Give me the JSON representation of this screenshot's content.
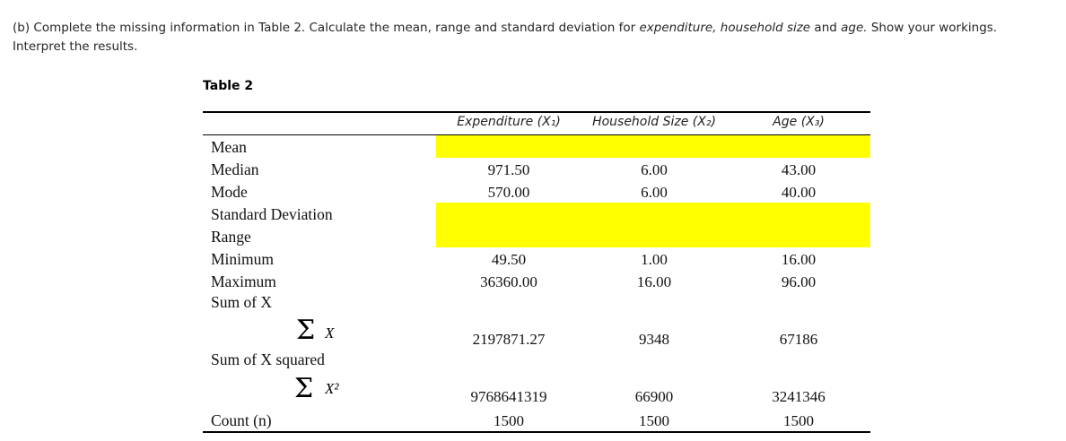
{
  "question": {
    "part1": "(b)  Complete the missing information in Table 2. Calculate the mean, range and standard deviation for ",
    "term1": "expenditure, household size",
    "part2": " and ",
    "term2": "age.",
    "part3": " Show your workings. Interpret the results."
  },
  "table": {
    "caption": "Table 2",
    "headers": [
      "Expenditure (X₁)",
      "Household Size (X₂)",
      "Age (X₃)"
    ],
    "highlight_color": "#ffff00",
    "rows": {
      "mean": {
        "label": "Mean",
        "values": [
          "",
          "",
          ""
        ]
      },
      "median": {
        "label": "Median",
        "values": [
          "971.50",
          "6.00",
          "43.00"
        ]
      },
      "mode": {
        "label": "Mode",
        "values": [
          "570.00",
          "6.00",
          "40.00"
        ]
      },
      "sd": {
        "label": "Standard Deviation",
        "values": [
          "",
          "",
          ""
        ]
      },
      "range": {
        "label": "Range",
        "values": [
          "",
          "",
          ""
        ]
      },
      "minimum": {
        "label": "Minimum",
        "values": [
          "49.50",
          "1.00",
          "16.00"
        ]
      },
      "maximum": {
        "label": "Maximum",
        "values": [
          "36360.00",
          "16.00",
          "96.00"
        ]
      },
      "sum_x": {
        "label": "Sum  of X",
        "symbol": "Σ",
        "var": "X",
        "values": [
          "2197871.27",
          "9348",
          "67186"
        ]
      },
      "sum_x2": {
        "label": "Sum of X squared",
        "symbol": "Σ",
        "var": "X²",
        "values": [
          "9768641319",
          "66900",
          "3241346"
        ]
      },
      "count": {
        "label": "Count (n)",
        "values": [
          "1500",
          "1500",
          "1500"
        ]
      }
    }
  }
}
